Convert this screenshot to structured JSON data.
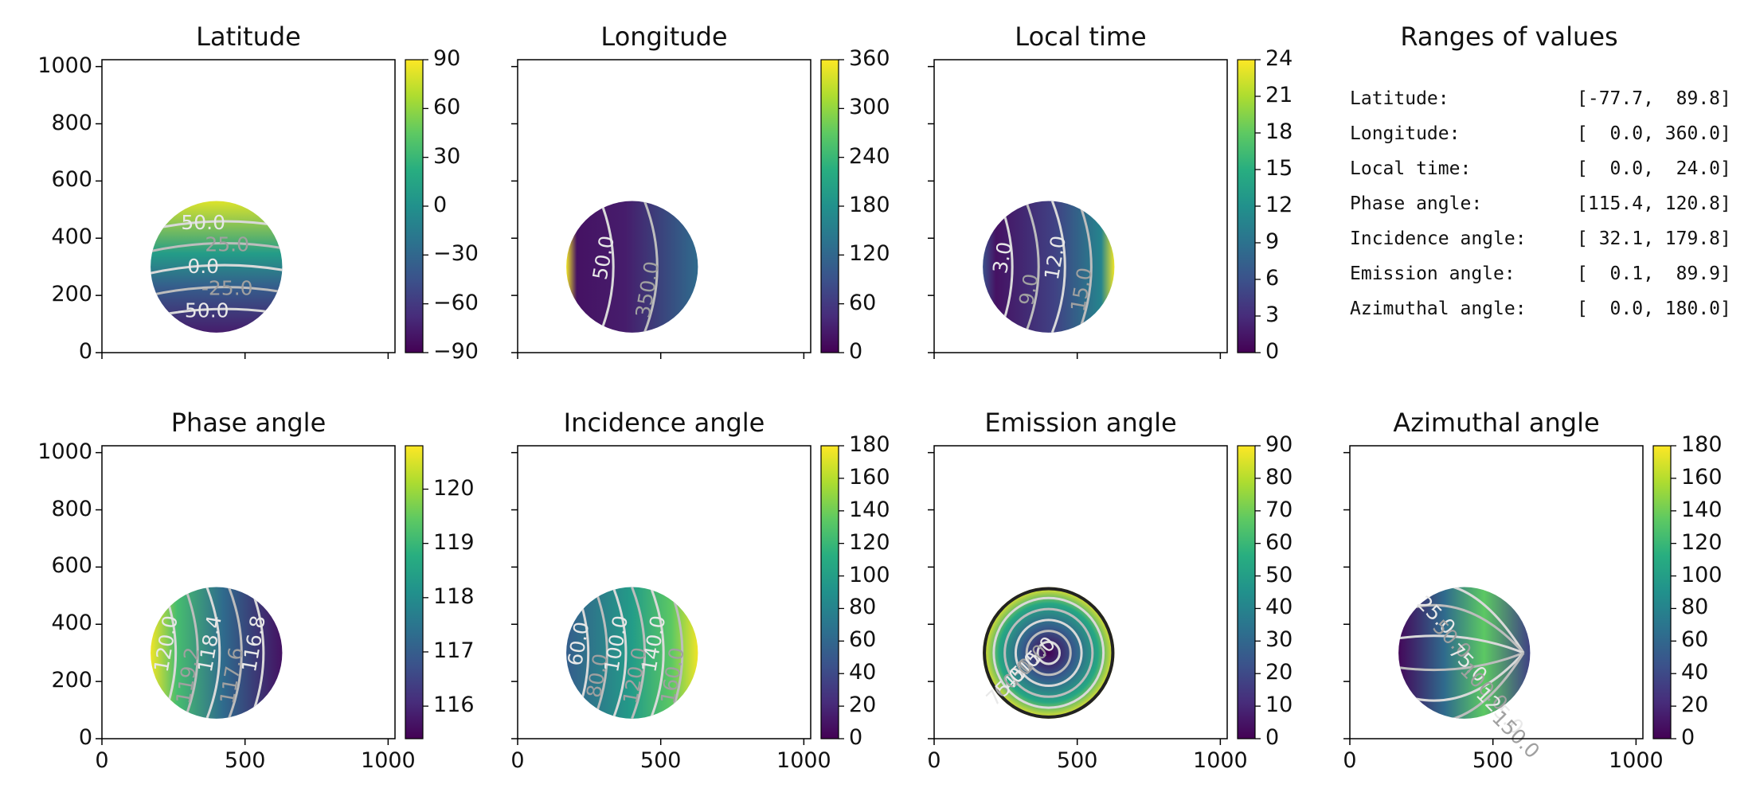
{
  "figure": {
    "ranges_title": "Ranges of values",
    "ranges": [
      {
        "label": "Latitude:",
        "value": "[-77.7,  89.8]"
      },
      {
        "label": "Longitude:",
        "value": "[  0.0, 360.0]"
      },
      {
        "label": "Local time:",
        "value": "[  0.0,  24.0]"
      },
      {
        "label": "Phase angle:",
        "value": "[115.4, 120.8]"
      },
      {
        "label": "Incidence angle:",
        "value": "[ 32.1, 179.8]"
      },
      {
        "label": "Emission angle:",
        "value": "[  0.1,  89.9]"
      },
      {
        "label": "Azimuthal angle:",
        "value": "[  0.0, 180.0]"
      }
    ]
  },
  "chart_data": [
    {
      "type": "heatmap",
      "title": "Latitude",
      "xlim": [
        0,
        1024
      ],
      "ylim": [
        0,
        1024
      ],
      "x_ticks": [
        0,
        500,
        1000
      ],
      "y_ticks": [
        0,
        200,
        400,
        600,
        800,
        1000
      ],
      "disk": {
        "cx": 400,
        "cy": 300,
        "r": 230
      },
      "colorbar": {
        "min": -90,
        "max": 90,
        "ticks": [
          "90",
          "60",
          "30",
          "0",
          "−30",
          "−60",
          "−90"
        ]
      },
      "contour_labels": [
        "50.0",
        "25.0",
        "0.0",
        "-25.0",
        "-50.0"
      ],
      "range": [
        -77.7,
        89.8
      ]
    },
    {
      "type": "heatmap",
      "title": "Longitude",
      "xlim": [
        0,
        1024
      ],
      "ylim": [
        0,
        1024
      ],
      "x_ticks": [
        0,
        500,
        1000
      ],
      "y_ticks": [
        0,
        200,
        400,
        600,
        800,
        1000
      ],
      "disk": {
        "cx": 400,
        "cy": 300,
        "r": 230
      },
      "colorbar": {
        "min": 0,
        "max": 360,
        "ticks": [
          "360",
          "300",
          "240",
          "180",
          "120",
          "60",
          "0"
        ]
      },
      "contour_labels": [
        "50.0",
        "350.0"
      ],
      "range": [
        0.0,
        360.0
      ]
    },
    {
      "type": "heatmap",
      "title": "Local time",
      "xlim": [
        0,
        1024
      ],
      "ylim": [
        0,
        1024
      ],
      "x_ticks": [
        0,
        500,
        1000
      ],
      "y_ticks": [
        0,
        200,
        400,
        600,
        800,
        1000
      ],
      "disk": {
        "cx": 400,
        "cy": 300,
        "r": 230
      },
      "colorbar": {
        "min": 0,
        "max": 24,
        "ticks": [
          "24",
          "21",
          "18",
          "15",
          "12",
          "9",
          "6",
          "3",
          "0"
        ]
      },
      "contour_labels": [
        "3.0",
        "9.0",
        "12.0",
        "15.0"
      ],
      "range": [
        0.0,
        24.0
      ]
    },
    {
      "type": "heatmap",
      "title": "Phase angle",
      "xlim": [
        0,
        1024
      ],
      "ylim": [
        0,
        1024
      ],
      "x_ticks": [
        0,
        500,
        1000
      ],
      "y_ticks": [
        0,
        200,
        400,
        600,
        800,
        1000
      ],
      "disk": {
        "cx": 400,
        "cy": 300,
        "r": 230
      },
      "colorbar": {
        "min": 115.4,
        "max": 120.8,
        "ticks": [
          "120",
          "119",
          "118",
          "117",
          "116"
        ]
      },
      "contour_labels": [
        "120.0",
        "119.2",
        "118.4",
        "117.6",
        "116.8"
      ],
      "range": [
        115.4,
        120.8
      ]
    },
    {
      "type": "heatmap",
      "title": "Incidence angle",
      "xlim": [
        0,
        1024
      ],
      "ylim": [
        0,
        1024
      ],
      "x_ticks": [
        0,
        500,
        1000
      ],
      "y_ticks": [
        0,
        200,
        400,
        600,
        800,
        1000
      ],
      "disk": {
        "cx": 400,
        "cy": 300,
        "r": 230
      },
      "colorbar": {
        "min": 0,
        "max": 180,
        "ticks": [
          "180",
          "160",
          "140",
          "120",
          "100",
          "80",
          "60",
          "40",
          "20",
          "0"
        ]
      },
      "contour_labels": [
        "60.0",
        "80.0",
        "100.0",
        "120.0",
        "140.0",
        "160.0"
      ],
      "range": [
        32.1,
        179.8
      ]
    },
    {
      "type": "heatmap",
      "title": "Emission angle",
      "xlim": [
        0,
        1024
      ],
      "ylim": [
        0,
        1024
      ],
      "x_ticks": [
        0,
        500,
        1000
      ],
      "y_ticks": [
        0,
        200,
        400,
        600,
        800,
        1000
      ],
      "disk": {
        "cx": 400,
        "cy": 300,
        "r": 230
      },
      "colorbar": {
        "min": 0,
        "max": 90,
        "ticks": [
          "90",
          "80",
          "70",
          "60",
          "50",
          "40",
          "30",
          "20",
          "10",
          "0"
        ]
      },
      "contour_labels": [
        "15.0",
        "30.0",
        "45.0",
        "60.0",
        "75.0"
      ],
      "range": [
        0.1,
        89.9
      ]
    },
    {
      "type": "heatmap",
      "title": "Azimuthal angle",
      "xlim": [
        0,
        1024
      ],
      "ylim": [
        0,
        1024
      ],
      "x_ticks": [
        0,
        500,
        1000
      ],
      "y_ticks": [
        0,
        200,
        400,
        600,
        800,
        1000
      ],
      "disk": {
        "cx": 400,
        "cy": 300,
        "r": 230
      },
      "colorbar": {
        "min": 0,
        "max": 180,
        "ticks": [
          "180",
          "160",
          "140",
          "120",
          "100",
          "80",
          "60",
          "40",
          "20",
          "0"
        ]
      },
      "contour_labels": [
        "25.0",
        "50.0",
        "75.0",
        "100.0",
        "125.0",
        "150.0"
      ],
      "range": [
        0.0,
        180.0
      ]
    }
  ]
}
